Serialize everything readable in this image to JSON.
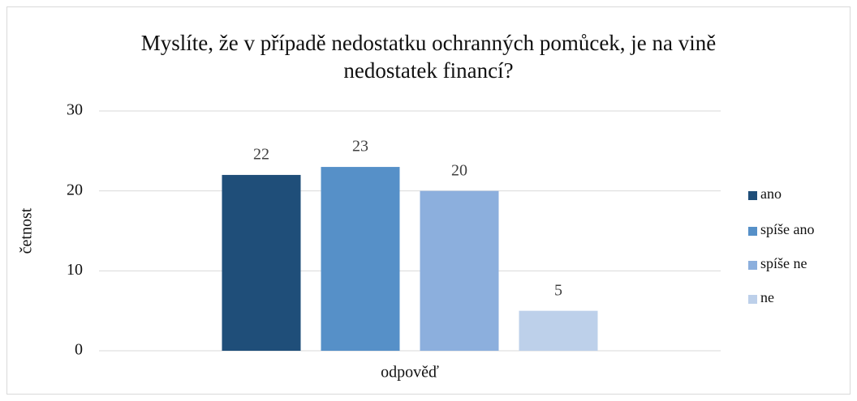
{
  "chart_data": {
    "type": "bar",
    "title": "Myslíte, že v případě nedostatku ochranných pomůcek, je na vině nedostatek financí?",
    "ylabel": "četnost",
    "categories": [
      "odpověď"
    ],
    "series": [
      {
        "name": "ano",
        "color": "#1f4e79",
        "values": [
          22
        ]
      },
      {
        "name": "spíše ano",
        "color": "#5690c8",
        "values": [
          23
        ]
      },
      {
        "name": "spíše ne",
        "color": "#8cafdd",
        "values": [
          20
        ]
      },
      {
        "name": "ne",
        "color": "#bdd0ea",
        "values": [
          5
        ]
      }
    ],
    "ylim": [
      0,
      30
    ],
    "yticks": [
      0,
      10,
      20,
      30
    ],
    "grid": true,
    "legend": "right"
  }
}
